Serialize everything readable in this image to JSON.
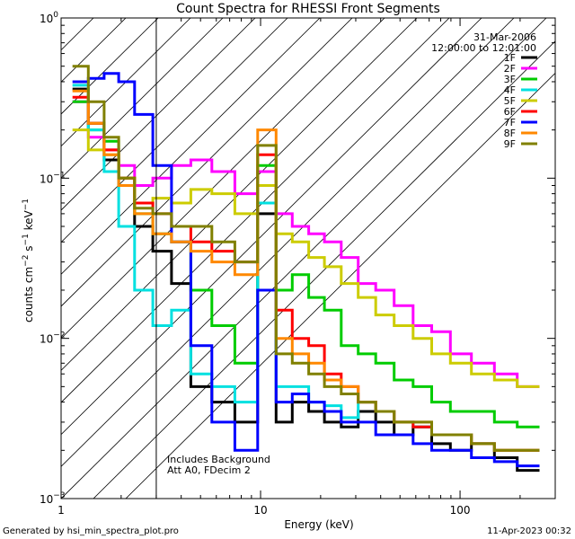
{
  "chart_data": {
    "type": "line",
    "title": "Count Spectra for RHESSI Front Segments",
    "xlabel": "Energy (keV)",
    "ylabel_parts": {
      "base": "counts cm",
      "exp1": "−2",
      "mid": " s",
      "exp2": "−1",
      "tail": " keV",
      "exp3": "−1"
    },
    "x_scale": "log",
    "y_scale": "log",
    "xlim": [
      1,
      300
    ],
    "ylim": [
      0.001,
      1
    ],
    "x_ticks": [
      {
        "value": 1,
        "label": "1"
      },
      {
        "value": 10,
        "label": "10"
      },
      {
        "value": 100,
        "label": "100"
      }
    ],
    "y_ticks": [
      {
        "value": 0.001,
        "base": "10",
        "exp": "−3"
      },
      {
        "value": 0.01,
        "base": "10",
        "exp": "−2"
      },
      {
        "value": 0.1,
        "base": "10",
        "exp": "−1"
      },
      {
        "value": 1,
        "base": "10",
        "exp": "0"
      }
    ],
    "date": "31-Mar-2006",
    "time_range": "12:00:00 to 12:01:00",
    "annotations": [
      "Includes Background",
      "Att A0, FDecim 2"
    ],
    "hatched_region_keV": [
      1,
      3
    ],
    "legend_position": "top-right",
    "series": [
      {
        "name": "1F",
        "color": "#000000",
        "values": [
          0.36,
          0.22,
          0.13,
          0.09,
          0.05,
          0.035,
          0.022,
          0.005,
          0.004,
          0.003,
          0.06,
          0.003,
          0.004,
          0.0035,
          0.003,
          0.0028,
          0.0035,
          0.003,
          0.0025,
          0.0028,
          0.0022,
          0.002,
          0.0022,
          0.0018,
          0.0015
        ]
      },
      {
        "name": "2F",
        "color": "#ff00ff",
        "values": [
          0.3,
          0.18,
          0.15,
          0.12,
          0.09,
          0.1,
          0.12,
          0.13,
          0.11,
          0.08,
          0.11,
          0.06,
          0.05,
          0.045,
          0.04,
          0.032,
          0.022,
          0.02,
          0.016,
          0.012,
          0.011,
          0.008,
          0.007,
          0.006,
          0.005
        ]
      },
      {
        "name": "3F",
        "color": "#00cc00",
        "values": [
          0.3,
          0.2,
          0.17,
          0.1,
          0.06,
          0.045,
          0.04,
          0.02,
          0.012,
          0.007,
          0.12,
          0.02,
          0.025,
          0.018,
          0.015,
          0.009,
          0.008,
          0.007,
          0.0055,
          0.005,
          0.004,
          0.0035,
          0.0035,
          0.003,
          0.0028
        ]
      },
      {
        "name": "4F",
        "color": "#00e0e0",
        "values": [
          0.38,
          0.2,
          0.11,
          0.05,
          0.02,
          0.012,
          0.015,
          0.006,
          0.005,
          0.004,
          0.07,
          0.005,
          0.005,
          0.004,
          0.0038,
          0.0032,
          0.004,
          0.0035,
          0.003,
          0.0028,
          0.0025,
          0.0025,
          0.0022,
          0.002,
          0.002
        ]
      },
      {
        "name": "5F",
        "color": "#cccc00",
        "values": [
          0.2,
          0.15,
          0.14,
          0.1,
          0.07,
          0.075,
          0.07,
          0.085,
          0.08,
          0.06,
          0.09,
          0.045,
          0.04,
          0.032,
          0.028,
          0.022,
          0.018,
          0.014,
          0.012,
          0.01,
          0.008,
          0.007,
          0.006,
          0.0055,
          0.005
        ]
      },
      {
        "name": "6F",
        "color": "#ff0000",
        "values": [
          0.32,
          0.22,
          0.15,
          0.1,
          0.07,
          0.06,
          0.05,
          0.04,
          0.035,
          0.03,
          0.14,
          0.015,
          0.01,
          0.009,
          0.006,
          0.005,
          0.004,
          0.0035,
          0.003,
          0.0028,
          0.0025,
          0.0025,
          0.0022,
          0.002,
          0.002
        ]
      },
      {
        "name": "7F",
        "color": "#0000ff",
        "values": [
          0.4,
          0.42,
          0.45,
          0.4,
          0.25,
          0.12,
          0.04,
          0.009,
          0.003,
          0.002,
          0.02,
          0.004,
          0.0045,
          0.004,
          0.0035,
          0.003,
          0.003,
          0.0025,
          0.0025,
          0.0022,
          0.002,
          0.002,
          0.0018,
          0.0017,
          0.0016
        ]
      },
      {
        "name": "8F",
        "color": "#ff8800",
        "values": [
          0.35,
          0.22,
          0.14,
          0.09,
          0.06,
          0.045,
          0.04,
          0.035,
          0.03,
          0.025,
          0.2,
          0.01,
          0.008,
          0.007,
          0.0055,
          0.005,
          0.004,
          0.0035,
          0.003,
          0.003,
          0.0025,
          0.0025,
          0.0022,
          0.002,
          0.002
        ]
      },
      {
        "name": "9F",
        "color": "#808000",
        "values": [
          0.5,
          0.3,
          0.18,
          0.1,
          0.065,
          0.06,
          0.05,
          0.05,
          0.04,
          0.03,
          0.16,
          0.008,
          0.007,
          0.006,
          0.005,
          0.0045,
          0.004,
          0.0035,
          0.003,
          0.003,
          0.0025,
          0.0025,
          0.0022,
          0.002,
          0.002
        ]
      }
    ],
    "energy_keV": [
      1.25,
      1.5,
      1.8,
      2.1,
      2.6,
      3.2,
      4.0,
      5.0,
      6.5,
      8.5,
      11.0,
      13.0,
      16.0,
      19.0,
      23.0,
      28.0,
      34.0,
      42.0,
      52.0,
      65.0,
      80.0,
      100.0,
      130.0,
      170.0,
      220.0
    ]
  },
  "footer": {
    "generated_by": "Generated by hsi_min_spectra_plot.pro",
    "timestamp": "11-Apr-2023 00:32"
  }
}
